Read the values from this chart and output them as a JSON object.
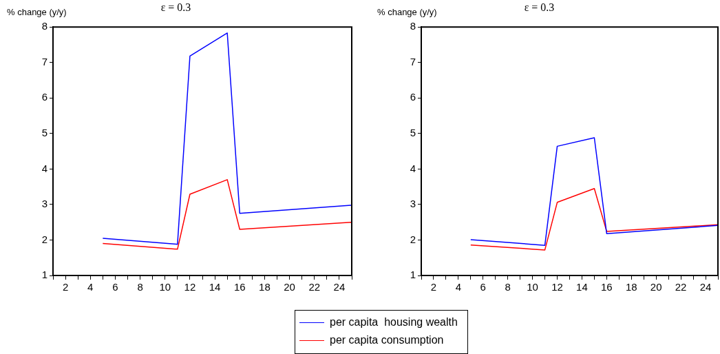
{
  "chart_data": [
    {
      "type": "line",
      "title": "ε = 0.3",
      "ylabel": "% change (y/y)",
      "xlim": [
        1,
        25
      ],
      "ylim": [
        1,
        8
      ],
      "yticks": [
        1,
        2,
        3,
        4,
        5,
        6,
        7,
        8
      ],
      "xticks": [
        {
          "value": 1,
          "label": null
        },
        2,
        {
          "value": 3,
          "label": null
        },
        4,
        {
          "value": 5,
          "label": null
        },
        6,
        {
          "value": 7,
          "label": null
        },
        8,
        {
          "value": 9,
          "label": null
        },
        10,
        {
          "value": 11,
          "label": null
        },
        12,
        {
          "value": 13,
          "label": null
        },
        14,
        {
          "value": 15,
          "label": null
        },
        16,
        {
          "value": 17,
          "label": null
        },
        18,
        {
          "value": 19,
          "label": null
        },
        20,
        {
          "value": 21,
          "label": null
        },
        22,
        {
          "value": 23,
          "label": null
        },
        24,
        {
          "value": 25,
          "label": null
        }
      ],
      "x": [
        5,
        11,
        12,
        15,
        16,
        25
      ],
      "grid": false,
      "legend": "bottom",
      "series": [
        {
          "name": "per capita  housing wealth",
          "color": "#0000ff",
          "values": [
            2.05,
            1.88,
            7.18,
            7.83,
            2.75,
            2.98
          ]
        },
        {
          "name": "per capita consumption",
          "color": "#ff0000",
          "values": [
            1.9,
            1.74,
            3.29,
            3.7,
            2.3,
            2.5
          ]
        }
      ]
    },
    {
      "type": "line",
      "title": "ε = 0.3",
      "ylabel": "% change (y/y)",
      "xlim": [
        1,
        25
      ],
      "ylim": [
        1,
        8
      ],
      "yticks": [
        1,
        2,
        3,
        4,
        5,
        6,
        7,
        8
      ],
      "xticks": [
        {
          "value": 1,
          "label": null
        },
        2,
        {
          "value": 3,
          "label": null
        },
        4,
        {
          "value": 5,
          "label": null
        },
        6,
        {
          "value": 7,
          "label": null
        },
        8,
        {
          "value": 9,
          "label": null
        },
        10,
        {
          "value": 11,
          "label": null
        },
        12,
        {
          "value": 13,
          "label": null
        },
        14,
        {
          "value": 15,
          "label": null
        },
        16,
        {
          "value": 17,
          "label": null
        },
        18,
        {
          "value": 19,
          "label": null
        },
        20,
        {
          "value": 21,
          "label": null
        },
        22,
        {
          "value": 23,
          "label": null
        },
        24,
        {
          "value": 25,
          "label": null
        }
      ],
      "x": [
        5,
        11,
        12,
        15,
        16,
        25
      ],
      "grid": false,
      "series": [
        {
          "color": "#0000ff",
          "values": [
            2.01,
            1.85,
            4.64,
            4.88,
            2.18,
            2.41
          ]
        },
        {
          "color": "#ff0000",
          "values": [
            1.86,
            1.72,
            3.06,
            3.45,
            2.24,
            2.43
          ]
        }
      ]
    }
  ]
}
